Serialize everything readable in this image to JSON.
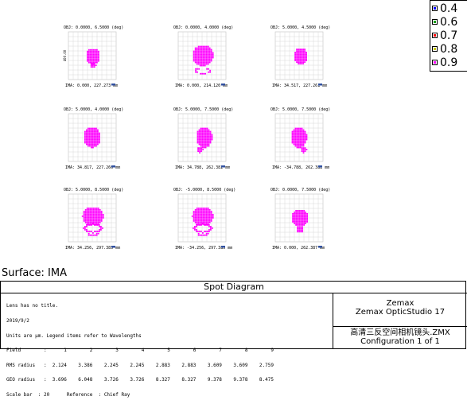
{
  "cells": [
    {
      "header": "OBJ: 0.0000, 6.5000 (deg)",
      "footer": "IMA: 0.000, 227.273 mm",
      "axis_label": "400.00"
    },
    {
      "header": "OBJ: 0.0000, 4.0000 (deg)",
      "footer": "IMA: 0.000, 214.120 mm"
    },
    {
      "header": "OBJ: 5.0000, 4.5000 (deg)",
      "footer": "IMA: 34.517, 227.261 mm"
    },
    {
      "header": "OBJ: 5.0000, 4.0000 (deg)",
      "footer": "IMA: 34.817, 227.260 mm"
    },
    {
      "header": "OBJ: 5.0000, 7.5000 (deg)",
      "footer": "IMA: 34.788, 262.382 mm"
    },
    {
      "header": "OBJ: 5.0000, 7.5000 (deg)",
      "footer": "IMA: -34.788, 262.382 mm"
    },
    {
      "header": "OBJ: 5.0000, 8.5000 (deg)",
      "footer": "IMA: 34.256, 297.385 mm"
    },
    {
      "header": "OBJ: -5.0000, 8.5000 (deg)",
      "footer": "IMA: -34.256, 297.385 mm"
    },
    {
      "header": "OBJ: 0.0000, 7.5000 (deg)",
      "footer": "IMA: 0.000, 262.387 mm"
    }
  ],
  "legend": [
    {
      "label": "0.4",
      "color": "#0000ff"
    },
    {
      "label": "0.6",
      "color": "#00a000"
    },
    {
      "label": "0.7",
      "color": "#ff0000"
    },
    {
      "label": "0.8",
      "color": "#c8c800"
    },
    {
      "label": "0.9",
      "color": "#ff00ff"
    }
  ],
  "surface": "Surface: IMA",
  "title": "Spot Diagram",
  "info_lines": [
    "Lens has no title.",
    "2019/9/2",
    "Units are μm. Legend items refer to Wavelengths",
    "Field        :      1        2        3        4        5        6        7        8        9",
    "RMS radius   :  2.124    3.386    2.245    2.245    2.883    2.883    3.609    3.609    2.759",
    "GEO radius   :  3.696    6.048    3.726    3.726    8.327    8.327    9.378    9.378    8.475",
    "Scale bar  : 20      Reference  : Chief Ray"
  ],
  "company": "Zemax",
  "product": "Zemax OpticStudio 17",
  "file_name": "高清三反空间相机镜头.ZMX",
  "configuration": "Configuration 1 of 1",
  "spot_color": "#ff00ff"
}
